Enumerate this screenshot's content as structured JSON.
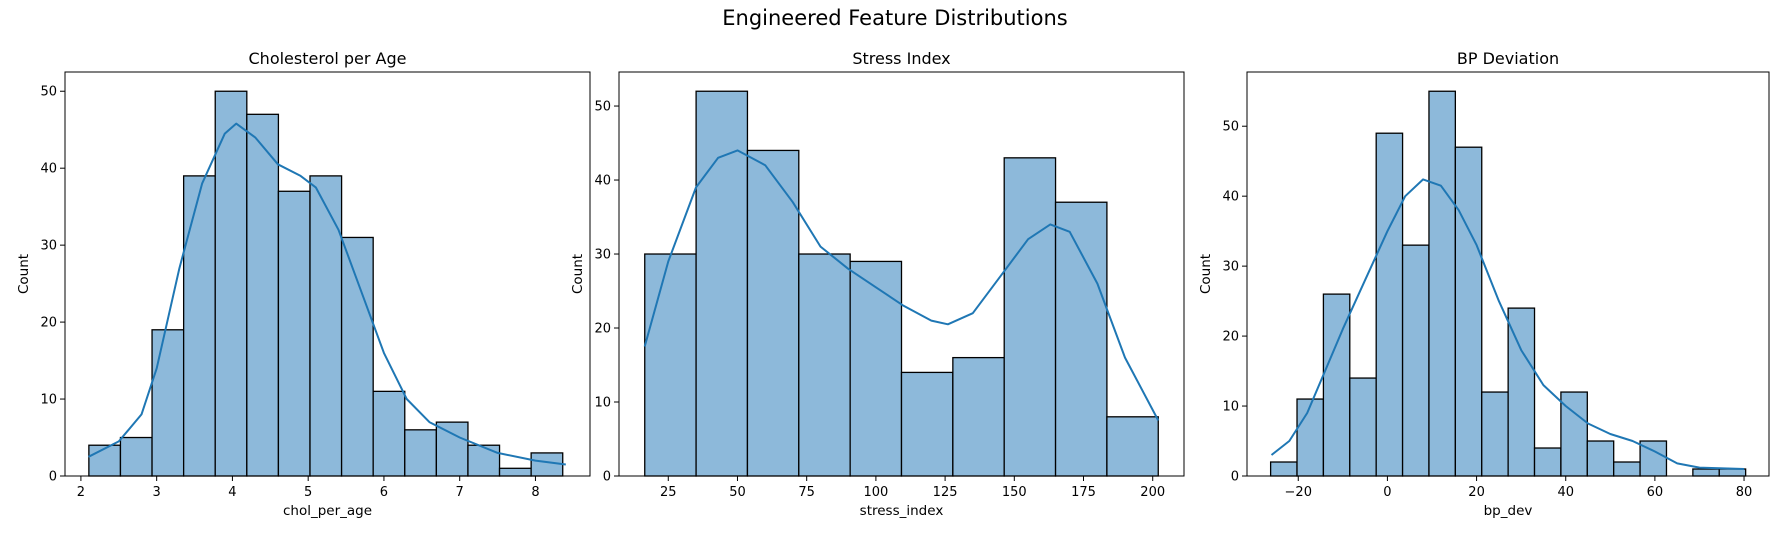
{
  "suptitle": "Engineered Feature Distributions",
  "colors": {
    "bar_fill": "#8db9da",
    "bar_edge": "#000000",
    "kde": "#1f77b4"
  },
  "chart_data": [
    {
      "type": "bar",
      "title": "Cholesterol per Age",
      "xlabel": "chol_per_age",
      "ylabel": "Count",
      "bin_start": 2.105,
      "bin_width": 0.417,
      "values": [
        4,
        5,
        19,
        39,
        50,
        47,
        37,
        39,
        31,
        11,
        6,
        7,
        4,
        1,
        3
      ],
      "xlim": [
        1.79,
        8.72
      ],
      "ylim": [
        0,
        52.5
      ],
      "xticks": [
        {
          "v": 2,
          "label": "2"
        },
        {
          "v": 3,
          "label": "3"
        },
        {
          "v": 4,
          "label": "4"
        },
        {
          "v": 5,
          "label": "5"
        },
        {
          "v": 6,
          "label": "6"
        },
        {
          "v": 7,
          "label": "7"
        },
        {
          "v": 8,
          "label": "8"
        }
      ],
      "yticks": [
        {
          "v": 0,
          "label": "0"
        },
        {
          "v": 10,
          "label": "10"
        },
        {
          "v": 20,
          "label": "20"
        },
        {
          "v": 30,
          "label": "30"
        },
        {
          "v": 40,
          "label": "40"
        },
        {
          "v": 50,
          "label": "50"
        }
      ],
      "kde": [
        [
          2.1,
          2.5
        ],
        [
          2.5,
          4.5
        ],
        [
          2.8,
          8
        ],
        [
          3.0,
          14
        ],
        [
          3.3,
          27
        ],
        [
          3.6,
          38
        ],
        [
          3.9,
          44.5
        ],
        [
          4.05,
          45.8
        ],
        [
          4.3,
          44
        ],
        [
          4.6,
          40.5
        ],
        [
          4.9,
          39
        ],
        [
          5.1,
          37.5
        ],
        [
          5.4,
          32
        ],
        [
          5.7,
          24
        ],
        [
          6.0,
          16
        ],
        [
          6.3,
          10
        ],
        [
          6.6,
          7
        ],
        [
          7.0,
          5
        ],
        [
          7.5,
          3
        ],
        [
          8.0,
          2
        ],
        [
          8.4,
          1.5
        ]
      ]
    },
    {
      "type": "bar",
      "title": "Stress Index",
      "xlabel": "stress_index",
      "ylabel": "Count",
      "bin_start": 16.5,
      "bin_width": 18.55,
      "values": [
        30,
        52,
        44,
        30,
        29,
        14,
        16,
        43,
        37,
        8
      ],
      "xlim": [
        7.2,
        211.3
      ],
      "ylim": [
        0,
        54.6
      ],
      "xticks": [
        {
          "v": 25,
          "label": "25"
        },
        {
          "v": 50,
          "label": "50"
        },
        {
          "v": 75,
          "label": "75"
        },
        {
          "v": 100,
          "label": "100"
        },
        {
          "v": 125,
          "label": "125"
        },
        {
          "v": 150,
          "label": "150"
        },
        {
          "v": 175,
          "label": "175"
        },
        {
          "v": 200,
          "label": "200"
        }
      ],
      "yticks": [
        {
          "v": 0,
          "label": "0"
        },
        {
          "v": 10,
          "label": "10"
        },
        {
          "v": 20,
          "label": "20"
        },
        {
          "v": 30,
          "label": "30"
        },
        {
          "v": 40,
          "label": "40"
        },
        {
          "v": 50,
          "label": "50"
        }
      ],
      "kde": [
        [
          16.5,
          17.5
        ],
        [
          25,
          29
        ],
        [
          35,
          39
        ],
        [
          43,
          43
        ],
        [
          50,
          44
        ],
        [
          60,
          42
        ],
        [
          70,
          37
        ],
        [
          80,
          31
        ],
        [
          90,
          28
        ],
        [
          100,
          25.5
        ],
        [
          110,
          23
        ],
        [
          120,
          21
        ],
        [
          126,
          20.5
        ],
        [
          135,
          22
        ],
        [
          145,
          27
        ],
        [
          155,
          32
        ],
        [
          163,
          34
        ],
        [
          170,
          33
        ],
        [
          180,
          26
        ],
        [
          190,
          16
        ],
        [
          202,
          7.5
        ]
      ]
    },
    {
      "type": "bar",
      "title": "BP Deviation",
      "xlabel": "bp_dev",
      "ylabel": "Count",
      "bin_start": -26.2,
      "bin_width": 5.92,
      "values": [
        2,
        11,
        26,
        14,
        49,
        33,
        55,
        47,
        12,
        24,
        4,
        12,
        5,
        2,
        5,
        0,
        1,
        1
      ],
      "xlim": [
        -31.5,
        85.6
      ],
      "ylim": [
        0,
        57.75
      ],
      "xticks": [
        {
          "v": -20,
          "label": "−20"
        },
        {
          "v": 0,
          "label": "0"
        },
        {
          "v": 20,
          "label": "20"
        },
        {
          "v": 40,
          "label": "40"
        },
        {
          "v": 60,
          "label": "60"
        },
        {
          "v": 80,
          "label": "80"
        }
      ],
      "yticks": [
        {
          "v": 0,
          "label": "0"
        },
        {
          "v": 10,
          "label": "10"
        },
        {
          "v": 20,
          "label": "20"
        },
        {
          "v": 30,
          "label": "30"
        },
        {
          "v": 40,
          "label": "40"
        },
        {
          "v": 50,
          "label": "50"
        }
      ],
      "kde": [
        [
          -26,
          3
        ],
        [
          -22,
          5
        ],
        [
          -18,
          9
        ],
        [
          -14,
          15
        ],
        [
          -10,
          21
        ],
        [
          -5,
          28
        ],
        [
          0,
          35
        ],
        [
          4,
          40
        ],
        [
          8,
          42.4
        ],
        [
          12,
          41.5
        ],
        [
          16,
          38
        ],
        [
          20,
          33
        ],
        [
          25,
          25
        ],
        [
          30,
          18
        ],
        [
          35,
          13
        ],
        [
          40,
          10
        ],
        [
          45,
          7.5
        ],
        [
          50,
          6
        ],
        [
          55,
          5
        ],
        [
          60,
          3.5
        ],
        [
          65,
          1.8
        ],
        [
          70,
          1.2
        ],
        [
          80,
          1
        ]
      ]
    }
  ]
}
